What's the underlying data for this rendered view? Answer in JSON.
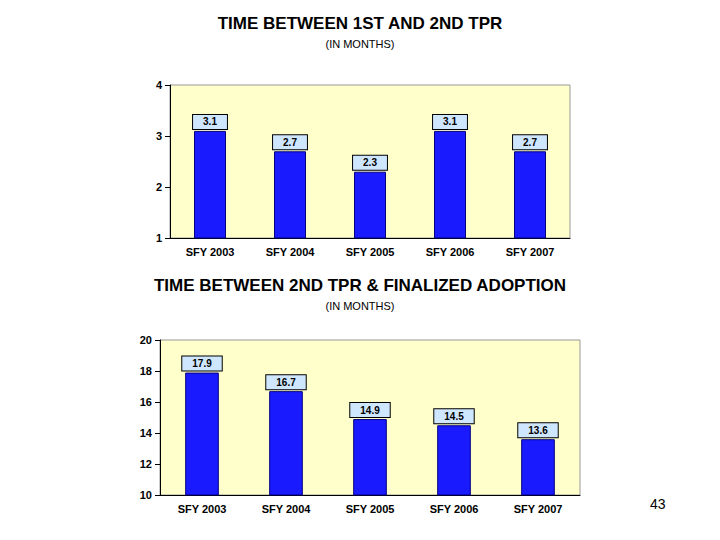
{
  "chart_data": [
    {
      "type": "bar",
      "title": "TIME BETWEEN 1ST AND 2ND TPR",
      "subtitle": "(IN MONTHS)",
      "categories": [
        "SFY 2003",
        "SFY 2004",
        "SFY 2005",
        "SFY 2006",
        "SFY 2007"
      ],
      "values": [
        3.1,
        2.7,
        2.3,
        3.1,
        2.7
      ],
      "color": "#1a1aff",
      "ylim": [
        1,
        4
      ],
      "yticks": [
        1,
        2,
        3,
        4
      ],
      "grid": false,
      "data_labels": true
    },
    {
      "type": "bar",
      "title": "TIME BETWEEN 2ND TPR & FINALIZED ADOPTION",
      "subtitle": "(IN MONTHS)",
      "categories": [
        "SFY 2003",
        "SFY 2004",
        "SFY 2005",
        "SFY 2006",
        "SFY 2007"
      ],
      "values": [
        17.9,
        16.7,
        14.9,
        14.5,
        13.6
      ],
      "color": "#1a1aff",
      "ylim": [
        10,
        20
      ],
      "yticks": [
        10,
        12,
        14,
        16,
        18,
        20
      ],
      "grid": false,
      "data_labels": true
    }
  ],
  "page_number": "43"
}
